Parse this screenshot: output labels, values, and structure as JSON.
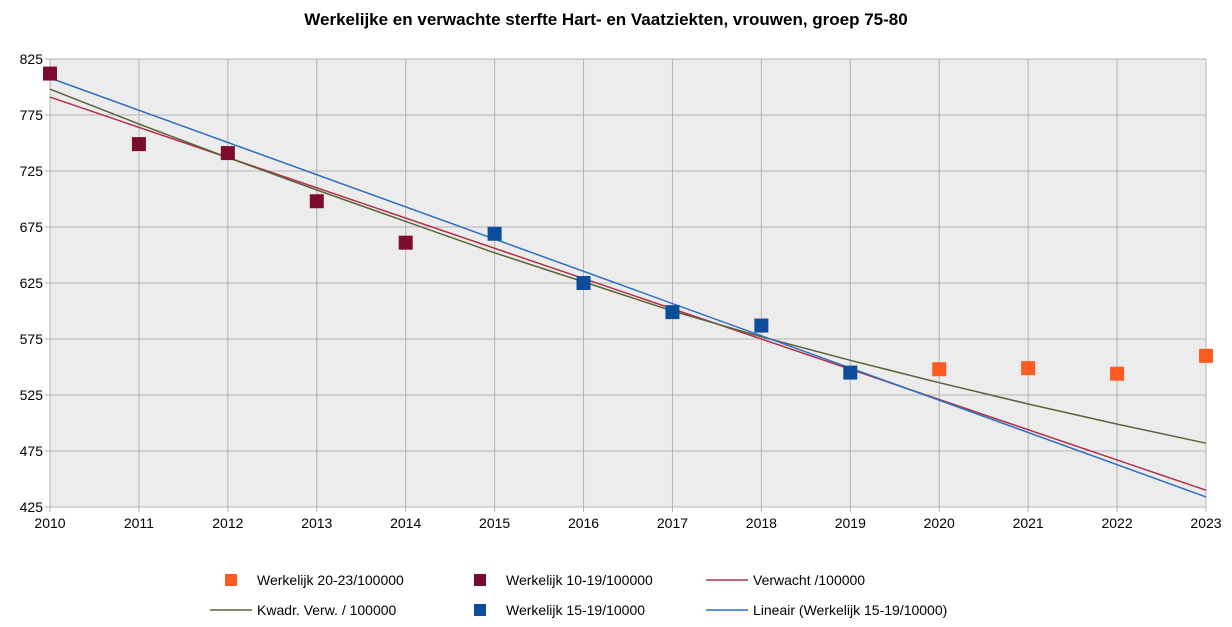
{
  "chart_data": {
    "type": "scatter",
    "title": "Werkelijke en verwachte sterfte Hart- en Vaatziekten, vrouwen, groep 75-80",
    "xlabel": "",
    "ylabel": "",
    "xlim": [
      2010,
      2023
    ],
    "ylim": [
      425,
      825
    ],
    "x_ticks": [
      "2010",
      "2011",
      "2012",
      "2013",
      "2014",
      "2015",
      "2016",
      "2017",
      "2018",
      "2019",
      "2020",
      "2021",
      "2022",
      "2023"
    ],
    "y_ticks": [
      "425",
      "475",
      "525",
      "575",
      "625",
      "675",
      "725",
      "775",
      "825"
    ],
    "grid": true,
    "legend_position": "bottom",
    "series": [
      {
        "name": "Werkelijk 20-23/100000",
        "kind": "points",
        "color": "#ff5a1f",
        "x": [
          2020,
          2021,
          2022,
          2023
        ],
        "y": [
          548,
          549,
          544,
          560
        ]
      },
      {
        "name": "Werkelijk 10-19/100000",
        "kind": "points",
        "color": "#7b0c2c",
        "x": [
          2010,
          2011,
          2012,
          2013,
          2014
        ],
        "y": [
          812,
          749,
          741,
          698,
          661
        ]
      },
      {
        "name": "Verwacht /100000",
        "kind": "line",
        "color": "#b0304a",
        "x": [
          2010,
          2023
        ],
        "y": [
          791,
          440
        ]
      },
      {
        "name": "Kwadr. Verw. / 100000",
        "kind": "line",
        "color": "#5a6438",
        "x": [
          2010,
          2011,
          2012,
          2013,
          2014,
          2015,
          2016,
          2017,
          2018,
          2019,
          2020,
          2021,
          2022,
          2023
        ],
        "y": [
          798,
          767,
          737,
          708,
          680,
          652,
          626,
          600,
          577,
          556,
          536,
          517,
          499,
          482
        ]
      },
      {
        "name": "Werkelijk 15-19/10000",
        "kind": "points",
        "color": "#0b4d9a",
        "x": [
          2015,
          2016,
          2017,
          2018,
          2019
        ],
        "y": [
          669,
          625,
          599,
          587,
          545
        ]
      },
      {
        "name": "Lineair (Werkelijk 15-19/10000)",
        "kind": "line",
        "color": "#2e6fc0",
        "x": [
          2010,
          2023
        ],
        "y": [
          808,
          434
        ]
      }
    ],
    "legend_order": [
      "Werkelijk 20-23/100000",
      "Werkelijk 10-19/100000",
      "Verwacht /100000",
      "Kwadr. Verw. / 100000",
      "Werkelijk 15-19/10000",
      "Lineair (Werkelijk 15-19/10000)"
    ]
  }
}
